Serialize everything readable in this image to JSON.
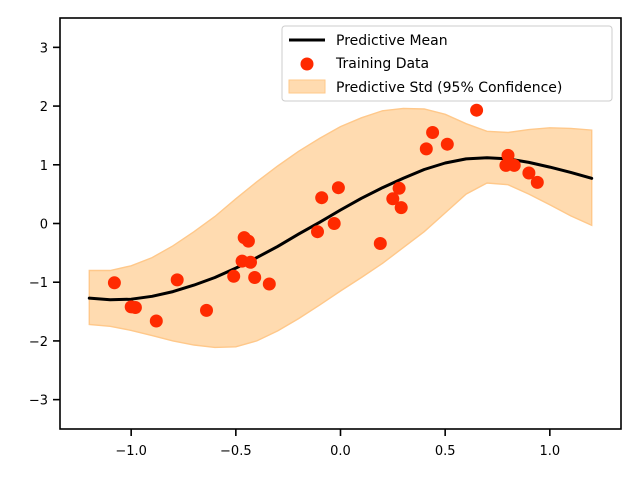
{
  "chart_data": {
    "type": "line",
    "xlim": [
      -1.34,
      1.34
    ],
    "ylim": [
      -3.5,
      3.5
    ],
    "xticks": [
      -1.0,
      -0.5,
      0.0,
      0.5,
      1.0
    ],
    "xtick_labels": [
      "−1.0",
      "−0.5",
      "0.0",
      "0.5",
      "1.0"
    ],
    "yticks": [
      -3,
      -2,
      -1,
      0,
      1,
      2,
      3
    ],
    "ytick_labels": [
      "−3",
      "−2",
      "−1",
      "0",
      "1",
      "2",
      "3"
    ],
    "grid": false,
    "legend_position": "top-right",
    "legend": {
      "mean_label": "Predictive Mean",
      "data_label": "Training Data",
      "band_label": "Predictive Std (95% Confidence)"
    },
    "colors": {
      "mean": "#000000",
      "points": "#ff2a00",
      "band_fill": "#ffdbb0",
      "band_edge": "#ffc88a"
    },
    "mean": {
      "name": "Predictive Mean",
      "x": [
        -1.2,
        -1.1,
        -1.0,
        -0.9,
        -0.8,
        -0.7,
        -0.6,
        -0.5,
        -0.4,
        -0.3,
        -0.2,
        -0.1,
        0.0,
        0.1,
        0.2,
        0.3,
        0.4,
        0.5,
        0.6,
        0.7,
        0.8,
        0.9,
        1.0,
        1.1,
        1.2
      ],
      "y": [
        -1.27,
        -1.3,
        -1.29,
        -1.24,
        -1.16,
        -1.05,
        -0.92,
        -0.76,
        -0.58,
        -0.39,
        -0.18,
        0.02,
        0.23,
        0.43,
        0.61,
        0.77,
        0.92,
        1.03,
        1.1,
        1.12,
        1.1,
        1.04,
        0.96,
        0.87,
        0.77
      ]
    },
    "confidence_band": {
      "name": "Predictive Std (95% Confidence)",
      "x": [
        -1.2,
        -1.1,
        -1.0,
        -0.9,
        -0.8,
        -0.7,
        -0.6,
        -0.5,
        -0.4,
        -0.3,
        -0.2,
        -0.1,
        0.0,
        0.1,
        0.2,
        0.3,
        0.4,
        0.5,
        0.6,
        0.7,
        0.8,
        0.9,
        1.0,
        1.1,
        1.2
      ],
      "upper": [
        -0.8,
        -0.8,
        -0.72,
        -0.58,
        -0.38,
        -0.14,
        0.12,
        0.42,
        0.71,
        0.98,
        1.23,
        1.45,
        1.65,
        1.8,
        1.92,
        1.96,
        1.95,
        1.86,
        1.7,
        1.57,
        1.55,
        1.6,
        1.63,
        1.62,
        1.59
      ],
      "lower": [
        -1.72,
        -1.75,
        -1.82,
        -1.91,
        -2.0,
        -2.07,
        -2.11,
        -2.1,
        -2.0,
        -1.83,
        -1.62,
        -1.39,
        -1.15,
        -0.92,
        -0.68,
        -0.41,
        -0.14,
        0.18,
        0.5,
        0.69,
        0.66,
        0.5,
        0.32,
        0.13,
        -0.03
      ]
    },
    "training_data": {
      "name": "Training Data",
      "x": [
        -1.08,
        -1.0,
        -0.98,
        -0.88,
        -0.78,
        -0.64,
        -0.51,
        -0.47,
        -0.46,
        -0.44,
        -0.43,
        -0.41,
        -0.34,
        -0.11,
        -0.09,
        -0.03,
        -0.01,
        0.19,
        0.25,
        0.28,
        0.29,
        0.41,
        0.44,
        0.51,
        0.65,
        0.79,
        0.8,
        0.83,
        0.9,
        0.94
      ],
      "y": [
        -1.01,
        -1.42,
        -1.43,
        -1.66,
        -0.96,
        -1.48,
        -0.9,
        -0.64,
        -0.24,
        -0.3,
        -0.66,
        -0.92,
        -1.03,
        -0.14,
        0.44,
        0.0,
        0.61,
        -0.34,
        0.42,
        0.6,
        0.27,
        1.27,
        1.55,
        1.35,
        1.93,
        0.99,
        1.16,
        0.99,
        0.86,
        0.7
      ]
    }
  }
}
